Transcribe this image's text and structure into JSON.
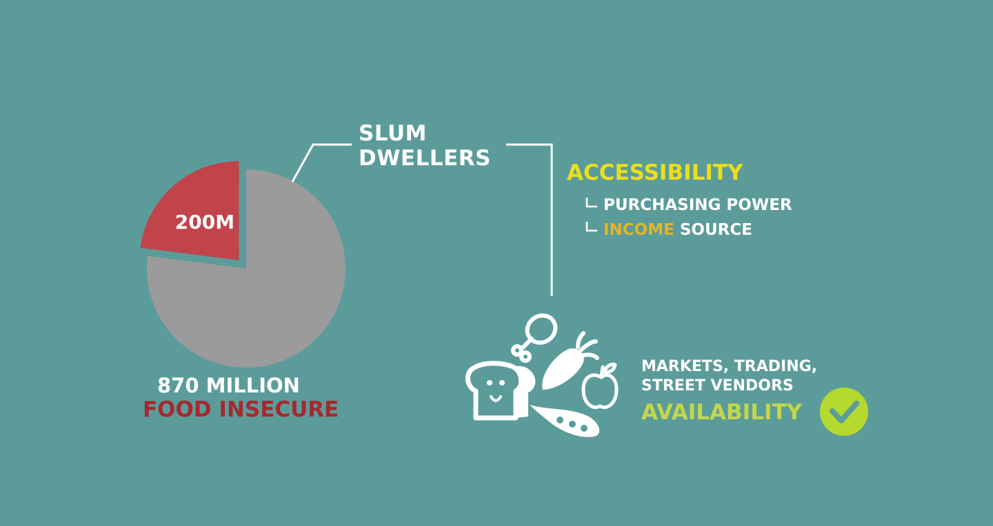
{
  "colors": {
    "background": "#5b9c9b",
    "pie_main": "#9b9b9b",
    "pie_slice": "#c1444a",
    "caption_red": "#a6282e",
    "accent_yellow": "#ecde1c",
    "accent_orange": "#e4b526",
    "availability_green": "#c4d64c",
    "check_green": "#b5d92e",
    "line_white": "#ffffff"
  },
  "chart_data": {
    "type": "pie",
    "slices": [
      {
        "label": "",
        "value": 670,
        "color": "#9b9b9b",
        "exploded": false
      },
      {
        "label": "200M",
        "value": 200,
        "color": "#c1444a",
        "exploded": true
      }
    ],
    "total_label": "870 MILLION",
    "caption": "FOOD INSECURE",
    "callout_label": "SLUM DWELLERS"
  },
  "callout": {
    "line1": "SLUM",
    "line2": "DWELLERS"
  },
  "accessibility": {
    "title": "ACCESSIBILITY",
    "items": [
      {
        "highlight": "",
        "text": "PURCHASING POWER"
      },
      {
        "highlight": "INCOME",
        "text": " SOURCE"
      }
    ]
  },
  "availability": {
    "line1": "MARKETS, TRADING,",
    "line2": "STREET VENDORS",
    "title": "AVAILABILITY"
  },
  "icons": [
    "chicken-leg-icon",
    "carrot-icon",
    "bread-icon",
    "apple-icon",
    "pea-pod-icon",
    "checkmark-icon"
  ]
}
